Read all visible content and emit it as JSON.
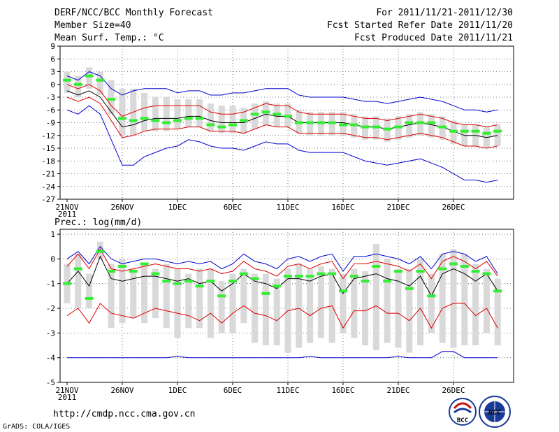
{
  "header": {
    "title": "DERF/NCC/BCC Monthly Forecast",
    "member_size": "Member Size=40",
    "variable": "Mean Surf. Temp.: °C",
    "period": "For 2011/11/21-2011/12/30",
    "started": "Fcst Started Refer Date 2011/11/20",
    "produced": "Fcst Produced Date 2011/11/21"
  },
  "footer": {
    "url": "http://cmdp.ncc.cma.gov.cn",
    "credit": "GrADS: COLA/IGES",
    "logo_bcc": "BCC",
    "logo_ncc": "NCC"
  },
  "colors": {
    "box": "#d9d9d9",
    "median": "#33ee33",
    "mean": "#000000",
    "std": "#dd0000",
    "range": "#0000cc",
    "grid": "#555555"
  },
  "chart_data": [
    {
      "type": "line",
      "panel": "temperature",
      "title": "",
      "ylabel": "Mean Surf. Temp.: °C",
      "ylim": [
        -27,
        9
      ],
      "yticks": [
        9,
        6,
        3,
        0,
        -3,
        -6,
        -9,
        -12,
        -15,
        -18,
        -21,
        -24,
        -27
      ],
      "xticks": [
        "21NOV",
        "26NOV",
        "1DEC",
        "6DEC",
        "11DEC",
        "16DEC",
        "21DEC",
        "26DEC"
      ],
      "xtick_year": "2011",
      "x_days": 40,
      "series": [
        {
          "name": "ensemble mean",
          "values": [
            -1.5,
            -2.5,
            -1.5,
            -3,
            -6.5,
            -10,
            -9.5,
            -8.5,
            -8,
            -8,
            -8,
            -7.5,
            -7.5,
            -8.5,
            -9,
            -9,
            -9,
            -8,
            -7,
            -7.5,
            -7.5,
            -9,
            -9,
            -9,
            -9,
            -9,
            -9.5,
            -10,
            -10,
            -10.5,
            -10,
            -9.5,
            -9,
            -9.5,
            -10,
            -11,
            -12,
            -12,
            -12.5,
            -12
          ]
        },
        {
          "name": "mean + std",
          "values": [
            0,
            -1,
            0,
            -1.5,
            -5,
            -7.5,
            -6.5,
            -5.5,
            -5,
            -5,
            -5,
            -5,
            -5,
            -6.5,
            -7,
            -7,
            -6.5,
            -5.5,
            -4.5,
            -5,
            -5,
            -6.5,
            -7,
            -7,
            -7,
            -7,
            -7.5,
            -8,
            -8,
            -8.5,
            -8,
            -7.5,
            -7,
            -7.5,
            -8,
            -9,
            -9.5,
            -9.5,
            -10,
            -9.5
          ]
        },
        {
          "name": "mean - std",
          "values": [
            -3,
            -4,
            -3,
            -4.5,
            -8.5,
            -12.5,
            -12,
            -11,
            -10.5,
            -10.5,
            -10.5,
            -10,
            -10,
            -11,
            -11,
            -11,
            -11.5,
            -10.5,
            -9.5,
            -10,
            -10,
            -11.5,
            -11.5,
            -11.5,
            -11.5,
            -11.5,
            -12,
            -12.5,
            -12.5,
            -13,
            -12.5,
            -12,
            -11.5,
            -12,
            -12.5,
            -13.5,
            -14.5,
            -14.5,
            -15,
            -14.5
          ]
        },
        {
          "name": "ensemble max",
          "values": [
            2,
            1,
            3,
            2,
            -1,
            -2.5,
            -1.5,
            -1,
            -1,
            -1,
            -2,
            -1.5,
            -1.5,
            -2.5,
            -2.5,
            -2,
            -2,
            -1.5,
            -1,
            -1,
            -1,
            -2.5,
            -3,
            -3,
            -3,
            -3,
            -3.5,
            -4,
            -4,
            -4.5,
            -4,
            -3.5,
            -3,
            -3.5,
            -4,
            -5,
            -6,
            -6,
            -6.5,
            -6
          ]
        },
        {
          "name": "ensemble min",
          "values": [
            -6,
            -7,
            -5,
            -7,
            -13,
            -19,
            -19,
            -17,
            -16,
            -15,
            -14.5,
            -13,
            -13.5,
            -14.5,
            -15,
            -15,
            -15.5,
            -14.5,
            -13.5,
            -14,
            -14,
            -15.5,
            -16,
            -16,
            -16,
            -16,
            -17,
            -18,
            -18.5,
            -19,
            -18.5,
            -18,
            -17.5,
            -18.5,
            -19.5,
            -21,
            -22.5,
            -22.5,
            -23,
            -22.5
          ]
        },
        {
          "name": "median",
          "values": [
            1,
            0,
            2,
            1,
            -3.5,
            -8,
            -8.5,
            -8,
            -8.5,
            -9,
            -8.5,
            -8,
            -8,
            -9.5,
            -10,
            -9.5,
            -8.5,
            -7,
            -6.5,
            -7,
            -7.5,
            -9,
            -9,
            -9,
            -9,
            -9.5,
            -9.5,
            -10,
            -10,
            -10.5,
            -10,
            -9,
            -9,
            -9,
            -10,
            -11,
            -11,
            -11,
            -11.5,
            -11
          ]
        }
      ],
      "box_low": [
        -2,
        -3,
        -1,
        -2.5,
        -7,
        -12,
        -12,
        -11,
        -11,
        -11,
        -10.5,
        -10,
        -10,
        -11,
        -11.5,
        -11.5,
        -11.5,
        -10.5,
        -9.5,
        -10,
        -10,
        -11.5,
        -12,
        -12,
        -12,
        -12,
        -12.5,
        -13,
        -13,
        -13.5,
        -13,
        -12.5,
        -12,
        -12.5,
        -13,
        -14,
        -14.5,
        -14.5,
        -15,
        -14.5
      ],
      "box_high": [
        3,
        2,
        4,
        3,
        1,
        -1,
        -1,
        -2,
        -3,
        -3,
        -3.5,
        -3.5,
        -3.5,
        -4.5,
        -5,
        -5,
        -5.5,
        -4.5,
        -4,
        -4.5,
        -4.5,
        -6,
        -6.5,
        -6.5,
        -6.5,
        -6.5,
        -7,
        -7.5,
        -7.5,
        -8,
        -7.5,
        -7,
        -6.5,
        -7,
        -7.5,
        -8.5,
        -9.5,
        -9.5,
        -10,
        -9.5
      ]
    },
    {
      "type": "line",
      "panel": "precipitation",
      "title": "Prec.: log(mm/d)",
      "ylabel": "Prec.: log(mm/d)",
      "ylim": [
        -5,
        1.2
      ],
      "yticks": [
        1,
        0,
        -1,
        -2,
        -3,
        -4,
        -5
      ],
      "xticks": [
        "21NOV",
        "26NOV",
        "1DEC",
        "6DEC",
        "11DEC",
        "16DEC",
        "21DEC",
        "26DEC"
      ],
      "xtick_year": "2011",
      "x_days": 40,
      "series": [
        {
          "name": "ensemble mean",
          "values": [
            -1,
            -0.5,
            -1.1,
            0.1,
            -0.8,
            -0.9,
            -0.8,
            -0.7,
            -0.7,
            -0.8,
            -0.9,
            -0.8,
            -1,
            -0.9,
            -1.3,
            -1,
            -0.6,
            -0.9,
            -1,
            -1.2,
            -0.8,
            -0.8,
            -0.9,
            -0.7,
            -0.6,
            -1.4,
            -0.8,
            -0.7,
            -0.6,
            -0.8,
            -0.9,
            -1.1,
            -0.7,
            -1.5,
            -0.6,
            -0.4,
            -0.6,
            -0.9,
            -0.6,
            -1.3
          ]
        },
        {
          "name": "mean + std",
          "values": [
            -0.3,
            0.2,
            -0.4,
            0.4,
            -0.4,
            -0.5,
            -0.4,
            -0.3,
            -0.2,
            -0.3,
            -0.4,
            -0.4,
            -0.5,
            -0.4,
            -0.6,
            -0.5,
            -0.1,
            -0.4,
            -0.5,
            -0.7,
            -0.3,
            -0.2,
            -0.4,
            -0.2,
            -0.1,
            -0.8,
            -0.2,
            -0.2,
            -0.1,
            -0.2,
            -0.3,
            -0.5,
            -0.2,
            -0.8,
            -0.1,
            0.1,
            -0.1,
            -0.4,
            -0.1,
            -0.7
          ]
        },
        {
          "name": "mean - std",
          "values": [
            -2.3,
            -2,
            -2.6,
            -1.8,
            -2.2,
            -2.3,
            -2.4,
            -2.2,
            -2,
            -2.1,
            -2.2,
            -2.3,
            -2.5,
            -2.2,
            -2.6,
            -2.2,
            -1.9,
            -2.2,
            -2.3,
            -2.5,
            -2.1,
            -2,
            -2.3,
            -2,
            -1.9,
            -2.8,
            -2.1,
            -2.1,
            -1.9,
            -2.2,
            -2.2,
            -2.5,
            -2,
            -2.8,
            -2,
            -1.8,
            -1.8,
            -2.3,
            -2,
            -2.8
          ]
        },
        {
          "name": "ensemble max",
          "values": [
            0,
            0.3,
            -0.2,
            0.5,
            0,
            -0.2,
            -0.1,
            0,
            0,
            -0.1,
            -0.2,
            -0.1,
            -0.2,
            -0.1,
            -0.4,
            -0.2,
            0.2,
            -0.1,
            -0.2,
            -0.4,
            0,
            0.1,
            -0.1,
            0.1,
            0.2,
            -0.5,
            0.1,
            0.1,
            0.2,
            0.1,
            0,
            -0.2,
            0.1,
            -0.4,
            0.2,
            0.3,
            0.2,
            -0.1,
            0.1,
            -0.6
          ]
        },
        {
          "name": "ensemble min",
          "values": [
            -4,
            -4,
            -4,
            -4,
            -4,
            -4,
            -4,
            -4,
            -4,
            -4,
            -3.95,
            -4,
            -4,
            -4,
            -4,
            -4,
            -4,
            -4,
            -4,
            -4,
            -4,
            -4,
            -3.95,
            -4,
            -4,
            -4,
            -4,
            -4,
            -4,
            -4,
            -3.95,
            -4,
            -4,
            -4,
            -3.75,
            -3.75,
            -4,
            -4,
            -4,
            -4
          ]
        },
        {
          "name": "median",
          "values": [
            -1,
            -0.4,
            -1.6,
            0.3,
            -0.5,
            -0.3,
            -0.5,
            -0.2,
            -0.6,
            -0.9,
            -1,
            -0.9,
            -1.1,
            -0.9,
            -1.5,
            -0.9,
            -0.6,
            -0.8,
            -1.4,
            -1.1,
            -0.7,
            -0.7,
            -0.7,
            -0.6,
            -0.6,
            -1.3,
            -0.7,
            -0.9,
            -0.3,
            -0.9,
            -0.5,
            -1.2,
            -0.5,
            -1.5,
            -0.4,
            -0.2,
            -0.3,
            -0.5,
            -0.6,
            -1.3
          ]
        }
      ],
      "box_low": [
        -1.8,
        -2,
        -2,
        0,
        -2.8,
        -2.6,
        -2.4,
        -2.6,
        -2.4,
        -2.8,
        -3.2,
        -2.8,
        -2.8,
        -3.2,
        -3,
        -3,
        -2.6,
        -3.4,
        -3.5,
        -3.5,
        -3.8,
        -3.6,
        -3.4,
        -3.2,
        -3.4,
        -3,
        -3.2,
        -3.5,
        -3.7,
        -3.4,
        -3.6,
        -3.8,
        -3.5,
        -3,
        -3.4,
        -3.6,
        -3.5,
        -3.5,
        -3,
        -3.5
      ],
      "box_high": [
        -0.2,
        0.2,
        -0.6,
        0.7,
        -0.2,
        0,
        -0.4,
        -0.2,
        -0.4,
        -0.2,
        -0.4,
        -0.6,
        -0.4,
        -0.4,
        -0.9,
        -0.6,
        -0.4,
        -0.6,
        -0.6,
        -0.8,
        -0.4,
        -0.2,
        -0.4,
        -0.3,
        -0.4,
        -0.6,
        -0.4,
        -0.5,
        0.6,
        0,
        -0.4,
        -0.4,
        0,
        -0.6,
        0.2,
        0.4,
        0.2,
        -0.2,
        -0.4,
        -0.8
      ]
    }
  ]
}
